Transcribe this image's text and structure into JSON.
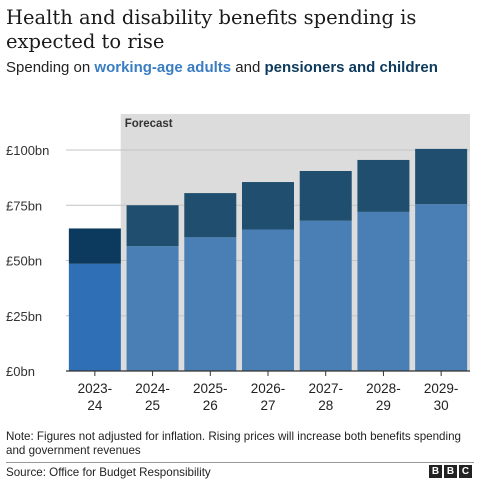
{
  "title": "Health and disability benefits spending is expected to rise",
  "subtitle": {
    "prefix": "Spending on ",
    "series1": "working-age adults",
    "connector": " and ",
    "series2": "pensioners and children"
  },
  "footnote": "Note: Figures not adjusted for inflation. Rising prices will increase both benefits spending and government revenues",
  "source": "Source: Office for Budget Responsibility",
  "logo": [
    "B",
    "B",
    "C"
  ],
  "colors": {
    "working_age_actual": "#2f6fb5",
    "pensioners_actual": "#0b3a5e",
    "working_age_forecast": "#4a7fb5",
    "pensioners_forecast": "#1f4e6e",
    "forecast_bg": "#dcdcdc"
  },
  "chart_data": {
    "type": "bar",
    "stacked": true,
    "categories": [
      [
        "2023-",
        "24"
      ],
      [
        "2024-",
        "25"
      ],
      [
        "2025-",
        "26"
      ],
      [
        "2026-",
        "27"
      ],
      [
        "2027-",
        "28"
      ],
      [
        "2028-",
        "29"
      ],
      [
        "2029-",
        "30"
      ]
    ],
    "series": [
      {
        "name": "working-age adults",
        "values": [
          48.5,
          56.5,
          60.5,
          64,
          68,
          72,
          75.5
        ]
      },
      {
        "name": "pensioners and children",
        "values": [
          16,
          18.5,
          20,
          21.5,
          22.5,
          23.5,
          25
        ]
      }
    ],
    "ylim": [
      0,
      100
    ],
    "yticks": [
      0,
      25,
      50,
      75,
      100
    ],
    "ytick_labels": [
      "£0bn",
      "£25bn",
      "£50bn",
      "£75bn",
      "£100bn"
    ],
    "forecast_label": "Forecast",
    "forecast_start_index": 1,
    "grid": true
  }
}
